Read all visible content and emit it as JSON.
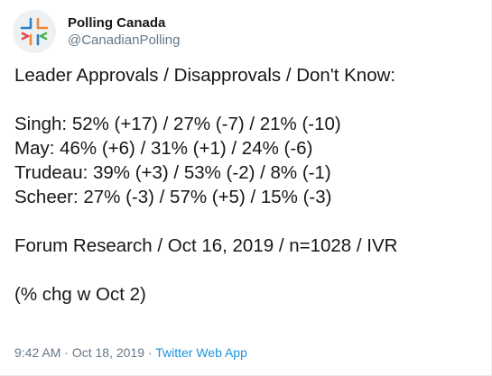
{
  "author": {
    "display_name": "Polling Canada",
    "handle": "@CanadianPolling",
    "avatar_icon": "polling-canada-logo-icon",
    "logo_colors": {
      "blue": "#2f80c9",
      "orange": "#f0883a",
      "red": "#e5484d",
      "green": "#4cb24c"
    }
  },
  "tweet": {
    "heading": "Leader Approvals / Disapprovals / Don't Know:",
    "leaders": [
      {
        "text": "Singh: 52% (+17) / 27% (-7) / 21% (-10)"
      },
      {
        "text": "May: 46% (+6) / 31% (+1) / 24% (-6)"
      },
      {
        "text": "Trudeau: 39% (+3) / 53% (-2) / 8% (-1)"
      },
      {
        "text": "Scheer: 27% (-3) / 57% (+5) / 15% (-3)"
      }
    ],
    "source": "Forum Research / Oct 16, 2019 / n=1028 / IVR",
    "note": "(% chg w Oct 2)"
  },
  "meta": {
    "time": "9:42 AM",
    "separator": " · ",
    "date": "Oct 18, 2019",
    "client": "Twitter Web App",
    "client_color": "#1b95e0"
  }
}
